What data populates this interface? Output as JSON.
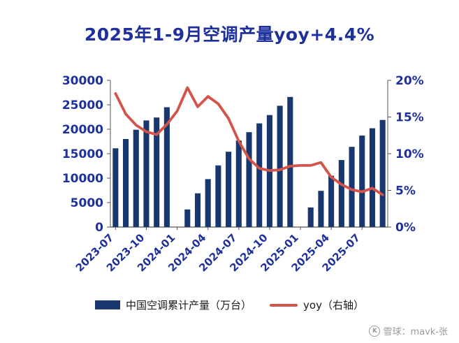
{
  "title": "2025年1-9月空调产量yoy+4.4%",
  "colors": {
    "bar": "#17376e",
    "line": "#d4544b",
    "title": "#1d309b",
    "axis_text": "#1d309b",
    "axis_line": "#555555",
    "legend_text": "#1a1a1a",
    "watermark": "#9a9a9a"
  },
  "legend": {
    "bar_label": "中国空调累计产量（万台）",
    "line_label": "yoy（右轴）"
  },
  "watermark": {
    "icon": "xueqiu-logo-icon",
    "text": "雪球：mavk-张"
  },
  "chart_data": {
    "type": "bar",
    "title": "2025年1-9月空调产量yoy+4.4%",
    "categories": [
      "2023-07",
      "2023-08",
      "2023-09",
      "2023-10",
      "2023-11",
      "2023-12",
      "2024-01",
      "2024-02",
      "2024-03",
      "2024-04",
      "2024-05",
      "2024-06",
      "2024-07",
      "2024-08",
      "2024-09",
      "2024-10",
      "2024-11",
      "2024-12",
      "2025-01",
      "2025-02",
      "2025-03",
      "2025-04",
      "2025-05",
      "2025-06",
      "2025-07",
      "2025-08",
      "2025-09"
    ],
    "x_tick_labels": [
      "2023-07",
      "2023-10",
      "2024-01",
      "2024-04",
      "2024-07",
      "2024-10",
      "2025-01",
      "2025-04",
      "2025-07"
    ],
    "x_tick_every": 3,
    "series": [
      {
        "name": "中国空调累计产量（万台）",
        "type": "bar",
        "axis": "left",
        "values": [
          16100,
          18000,
          19900,
          21800,
          22400,
          24500,
          null,
          3600,
          6900,
          9800,
          12600,
          15400,
          17700,
          19400,
          21200,
          22900,
          24800,
          26600,
          null,
          4000,
          7400,
          10500,
          13700,
          16400,
          18700,
          20200,
          21900
        ]
      },
      {
        "name": "yoy（右轴）",
        "type": "line",
        "axis": "right",
        "values": [
          18.2,
          15.4,
          13.9,
          13.0,
          12.6,
          14.0,
          15.8,
          19.0,
          16.4,
          17.8,
          16.8,
          14.8,
          11.7,
          9.3,
          8.0,
          7.7,
          7.8,
          8.3,
          8.4,
          8.4,
          8.8,
          6.8,
          5.8,
          5.1,
          4.8,
          5.3,
          4.4
        ]
      }
    ],
    "left_axis": {
      "min": 0,
      "max": 30000,
      "step": 5000,
      "tick_labels": [
        "0",
        "5000",
        "10000",
        "15000",
        "20000",
        "25000",
        "30000"
      ]
    },
    "right_axis": {
      "min": 0,
      "max": 20,
      "step": 5,
      "tick_labels": [
        "0%",
        "5%",
        "10%",
        "15%",
        "20%"
      ]
    },
    "grid": false,
    "legend_position": "bottom"
  }
}
